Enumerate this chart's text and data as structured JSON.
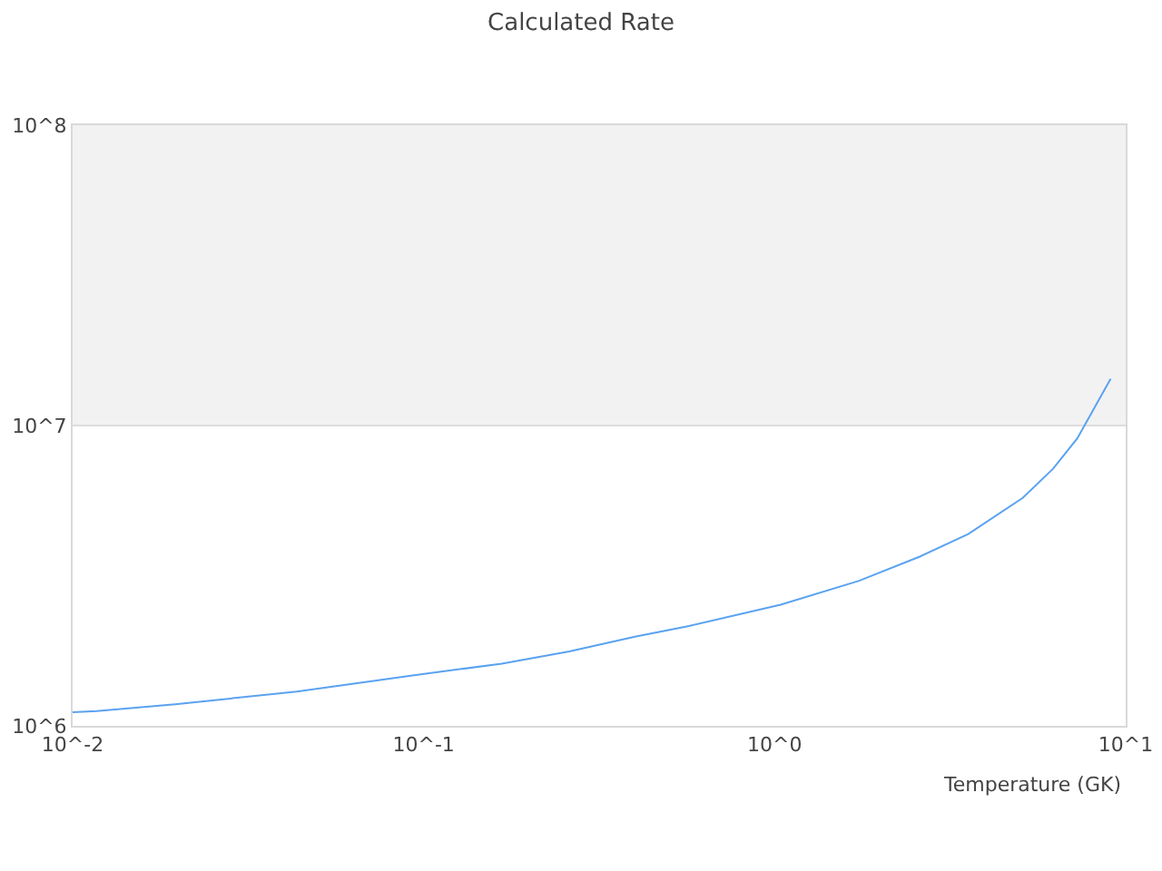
{
  "chart_data": {
    "type": "line",
    "title": "Calculated Rate",
    "xlabel": "Temperature (GK)",
    "x": [
      0.01,
      0.0117,
      0.0196,
      0.0435,
      0.096,
      0.167,
      0.26,
      0.4,
      0.57,
      1.04,
      1.74,
      2.59,
      3.56,
      5.09,
      6.21,
      7.28,
      9.06
    ],
    "series": [
      {
        "color": "#5aa2f0",
        "values": [
          1110000,
          1120000,
          1180000,
          1300000,
          1480000,
          1610000,
          1770000,
          1980000,
          2150000,
          2530000,
          3040000,
          3660000,
          4350000,
          5740000,
          7180000,
          9060000,
          14300000
        ]
      }
    ],
    "log": "xy",
    "xlim": [
      0.01,
      10
    ],
    "ylim": [
      1000000,
      100000000
    ],
    "xticks": [
      {
        "value": 0.01,
        "label": "10^-2"
      },
      {
        "value": 0.1,
        "label": "10^-1"
      },
      {
        "value": 1,
        "label": "10^0"
      },
      {
        "value": 10,
        "label": "10^1"
      }
    ],
    "yticks": [
      {
        "value": 1000000,
        "label": "10^6"
      },
      {
        "value": 10000000,
        "label": "10^7"
      },
      {
        "value": 100000000,
        "label": "10^8"
      }
    ],
    "grid": "y",
    "line_style": "solid",
    "bands": [
      {
        "axis": "y",
        "from": 10000000,
        "to": 100000000,
        "color": "#f2f2f2"
      }
    ]
  }
}
